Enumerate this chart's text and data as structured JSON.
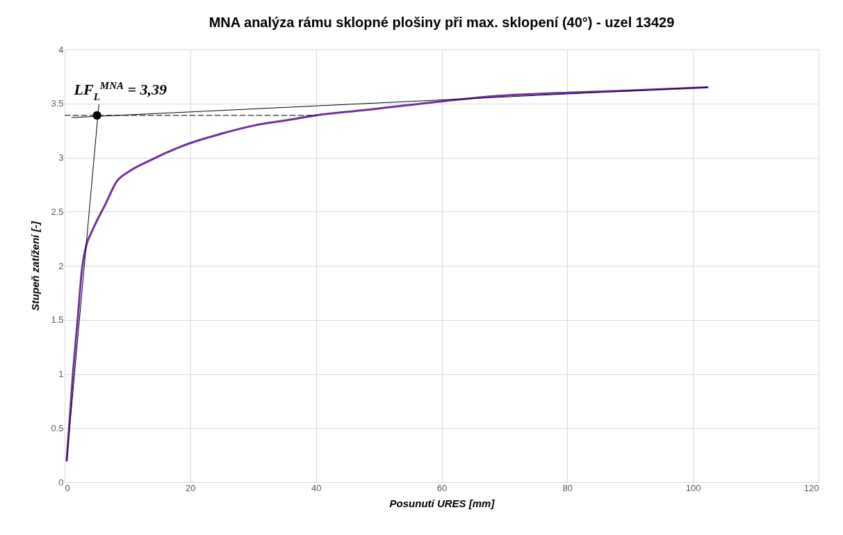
{
  "chart_data": {
    "type": "line",
    "title": "MNA analýza rámu sklopné plošiny při max. sklopení (40°) - uzel 13429",
    "xlabel": "Posunutí URES [mm]",
    "ylabel": "Stupeň zatížení [-]",
    "xlim": [
      0,
      120
    ],
    "xticks": [
      0,
      20,
      40,
      60,
      80,
      100,
      120
    ],
    "ylim": [
      0,
      4
    ],
    "yticks": [
      0,
      0.5,
      1,
      1.5,
      2,
      2.5,
      3,
      3.5,
      4
    ],
    "grid": true,
    "series": [
      {
        "color": "#7030a0",
        "x": [
          0.33,
          1.33,
          2.07,
          2.8,
          3.5,
          4.2,
          5.0,
          6.5,
          8.3,
          10.2,
          13.8,
          19.8,
          24.9,
          30.4,
          35.9,
          40,
          47.9,
          60,
          69.1,
          80.1,
          90.2,
          102.3
        ],
        "values": [
          0.2,
          1.01,
          1.5,
          1.99,
          2.2,
          2.3,
          2.4,
          2.57,
          2.78,
          2.87,
          2.98,
          3.13,
          3.22,
          3.3,
          3.35,
          3.39,
          3.44,
          3.52,
          3.57,
          3.6,
          3.62,
          3.65
        ]
      },
      {
        "color": "#000000",
        "x": [
          0.33,
          5.45
        ],
        "values": [
          0.2,
          3.49
        ]
      },
      {
        "color": "#000000",
        "x": [
          1.14,
          102.3
        ],
        "values": [
          3.37,
          3.65
        ]
      },
      {
        "color": "#000000",
        "line_style": "dashed",
        "x": [
          0,
          40
        ],
        "values": [
          3.39,
          3.39
        ]
      },
      {
        "type": "scatter",
        "color": "#000000",
        "marker": "circle",
        "x": [
          5.15
        ],
        "values": [
          3.39
        ]
      }
    ],
    "annotations": [
      {
        "text": "LF$_{L}$$^{MNA}$ = 3,39",
        "x": 5.15,
        "y": 3.39
      }
    ]
  }
}
